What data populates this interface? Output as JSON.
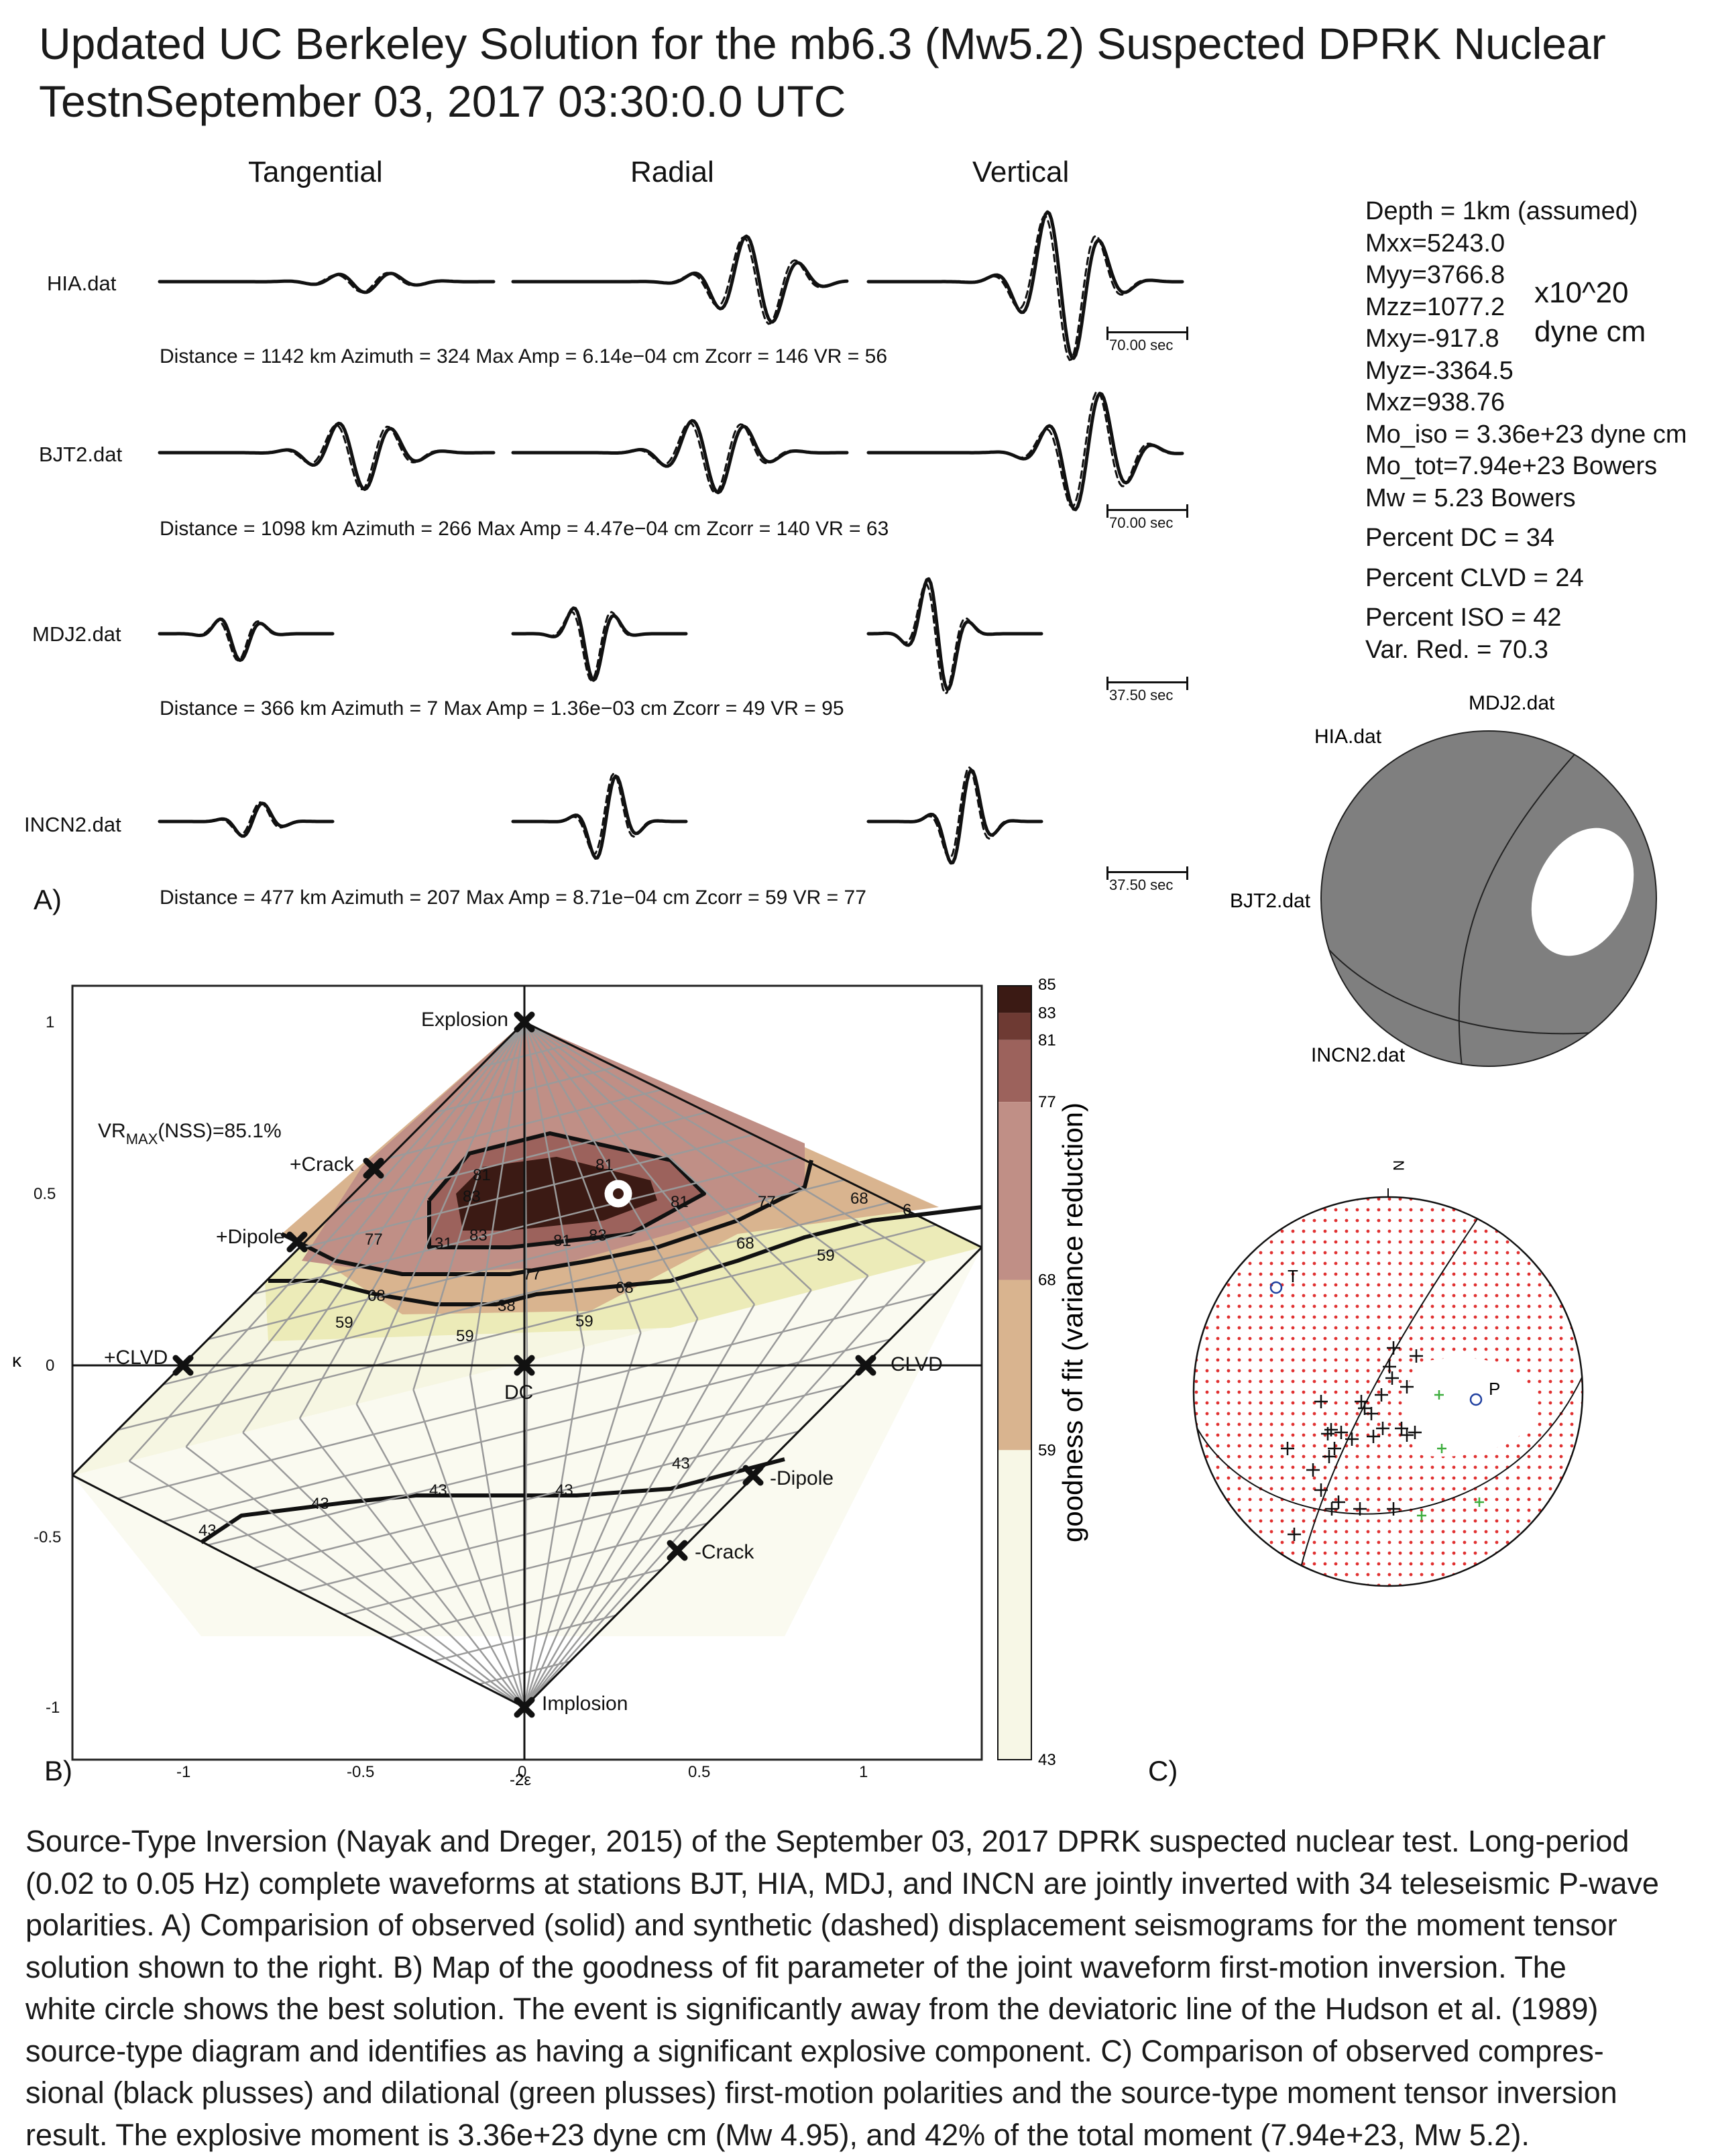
{
  "title_lines": [
    "Updated UC Berkeley Solution for the mb6.3 (Mw5.2) Suspected DPRK Nuclear",
    "TestnSeptember 03, 2017  03:30:0.0 UTC"
  ],
  "waveforms": {
    "columns": [
      "Tangential",
      "Radial",
      "Vertical"
    ],
    "stations": [
      {
        "label": "HIA.dat",
        "info": "Distance = 1142 km  Azimuth = 324  Max Amp = 6.14e−04 cm  Zcorr = 146  VR = 56",
        "scale": "70.00 sec"
      },
      {
        "label": "BJT2.dat",
        "info": "Distance = 1098 km  Azimuth = 266  Max Amp = 4.47e−04 cm  Zcorr = 140  VR = 63",
        "scale": "70.00 sec"
      },
      {
        "label": "MDJ2.dat",
        "info": "Distance = 366 km  Azimuth = 7  Max Amp = 1.36e−03 cm  Zcorr = 49  VR = 95",
        "scale": "37.50 sec"
      },
      {
        "label": "INCN2.dat",
        "info": "Distance = 477 km  Azimuth = 207  Max Amp = 8.71e−04 cm  Zcorr = 59  VR = 77",
        "scale": "37.50 sec"
      }
    ]
  },
  "solution": {
    "lines": [
      "Depth = 1km (assumed)",
      "Mxx=5243.0",
      "Myy=3766.8",
      "Mzz=1077.2",
      "Mxy=-917.8",
      "Myz=-3364.5",
      "Mxz=938.76",
      "Mo_iso = 3.36e+23 dyne cm",
      "Mo_tot=7.94e+23 Bowers",
      "Mw = 5.23 Bowers",
      "Percent DC = 34",
      "Percent CLVD = 24",
      "Percent ISO = 42",
      "Var. Red. = 70.3"
    ],
    "units": [
      "x10^20",
      "dyne cm"
    ]
  },
  "beachball": {
    "station_labels": {
      "mdj2": "MDJ2.dat",
      "hia": "HIA.dat",
      "bjt2": "BJT2.dat",
      "incn2": "INCN2.dat"
    },
    "fill_color": "#7f7f7f"
  },
  "panel_letters": {
    "a": "A)",
    "b": "B)",
    "c": "C)"
  },
  "source_type_plot": {
    "vr_max_main": "VR",
    "vr_max_sub": "MAX",
    "vr_max_rest": "(NSS)=85.1%",
    "ylabel": "κ",
    "xlabel": "-2ε",
    "xticks": [
      "-1",
      "-0.5",
      "0",
      "0.5",
      "1"
    ],
    "yticks": [
      "1",
      "0.5",
      "0",
      "-0.5",
      "-1"
    ],
    "markers": {
      "explosion": "Explosion",
      "implosion": "Implosion",
      "pcrack": "+Crack",
      "pdipole": "+Dipole",
      "pclvd": "+CLVD",
      "dc": "DC",
      "mclvd": "-CLVD",
      "mdipole": "-Dipole",
      "mcrack": "-Crack"
    },
    "contour_labels": {
      "c81a": "81",
      "c81b": "81",
      "c81c": "81",
      "c81d": "81",
      "c83a": "83",
      "c83b": "83",
      "c83c": "83",
      "c77a": "77",
      "c77b": "77",
      "c77c": "77",
      "c68a": "68",
      "c68b": "68",
      "c68c": "68",
      "c68d": "68",
      "c59a": "59",
      "c59b": "59",
      "c59c": "59",
      "c59d": "59",
      "c38": "38",
      "c31": "31",
      "c43a": "43",
      "c43b": "43",
      "c43c": "43",
      "c43d": "43",
      "c43e": "43",
      "c6": "6"
    },
    "colorbar": {
      "label": "goodness of fit (variance reduction)",
      "ticks": [
        "85",
        "83",
        "81",
        "77",
        "68",
        "59",
        "43"
      ],
      "colors": [
        "#3b1a14",
        "#6e3a33",
        "#9c625c",
        "#c08f86",
        "#d9b48f",
        "#e6e3a8",
        "#f7f7e6"
      ]
    }
  },
  "focal_sphere": {
    "north_label": "N",
    "t_label": "T",
    "p_label": "P",
    "compression_color": "#111111",
    "dilatation_color": "#3fae3f",
    "axis_color": "#2040a0",
    "dot_color": "#e03030"
  },
  "caption_lines": [
    "Source-Type Inversion (Nayak and Dreger, 2015) of the September 03, 2017 DPRK suspected nuclear test.  Long-period",
    "(0.02 to 0.05 Hz) complete waveforms at stations BJT, HIA, MDJ, and INCN are jointly inverted with 34 teleseismic P-wave",
    "polarities.  A) Comparision of observed (solid) and synthetic (dashed) displacement seismograms for the moment tensor",
    "solution shown to the right. B) Map of the goodness of fit parameter of the joint waveform first-motion inversion. The",
    "white circle shows the best solution. The event is significantly away from the deviatoric line of the Hudson et al. (1989)",
    "source-type diagram and identifies as having a significant explosive component. C)  Comparison of observed compres-",
    "sional (black plusses) and dilational (green plusses) first-motion polarities and the source-type moment tensor inversion",
    "result. The explosive moment is 3.36e+23 dyne cm (Mw 4.95), and 42% of the total moment (7.94e+23, Mw 5.2)."
  ]
}
